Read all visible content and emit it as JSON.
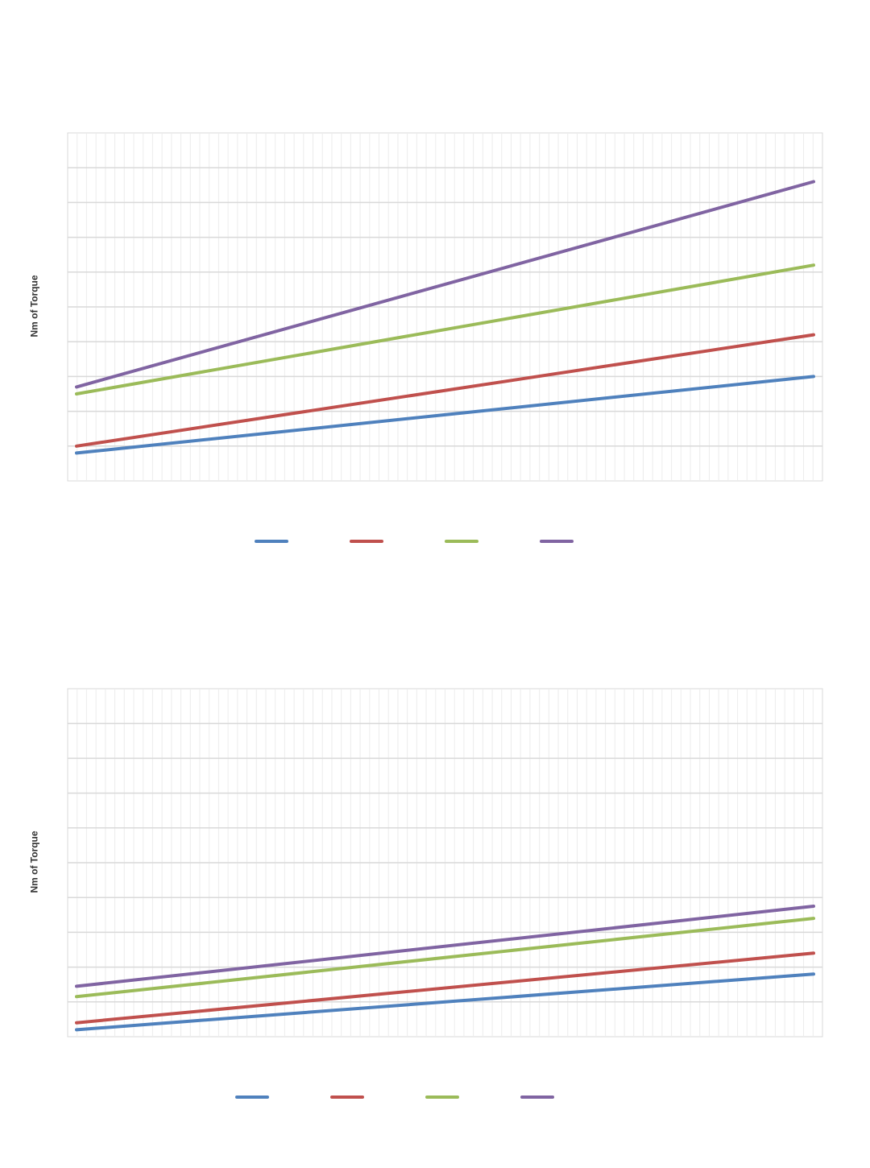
{
  "chart_data": [
    {
      "type": "line",
      "title": "",
      "xlabel": "",
      "ylabel": "Nm of Torque",
      "ylim": [
        0,
        10
      ],
      "grid": true,
      "legend_position": "bottom",
      "x": [
        0,
        1
      ],
      "series": [
        {
          "color": "#4f81bd",
          "values": [
            0.8,
            3.0
          ]
        },
        {
          "color": "#c0504d",
          "values": [
            1.0,
            4.2
          ]
        },
        {
          "color": "#9bbb59",
          "values": [
            2.5,
            6.2
          ]
        },
        {
          "color": "#8064a2",
          "values": [
            2.7,
            8.6
          ]
        }
      ]
    },
    {
      "type": "line",
      "title": "",
      "xlabel": "",
      "ylabel": "Nm of Torque",
      "ylim": [
        0,
        10
      ],
      "grid": true,
      "legend_position": "bottom",
      "x": [
        0,
        1
      ],
      "series": [
        {
          "color": "#4f81bd",
          "values": [
            0.2,
            1.8
          ]
        },
        {
          "color": "#c0504d",
          "values": [
            0.4,
            2.4
          ]
        },
        {
          "color": "#9bbb59",
          "values": [
            1.15,
            3.4
          ]
        },
        {
          "color": "#8064a2",
          "values": [
            1.45,
            3.75
          ]
        }
      ]
    }
  ]
}
